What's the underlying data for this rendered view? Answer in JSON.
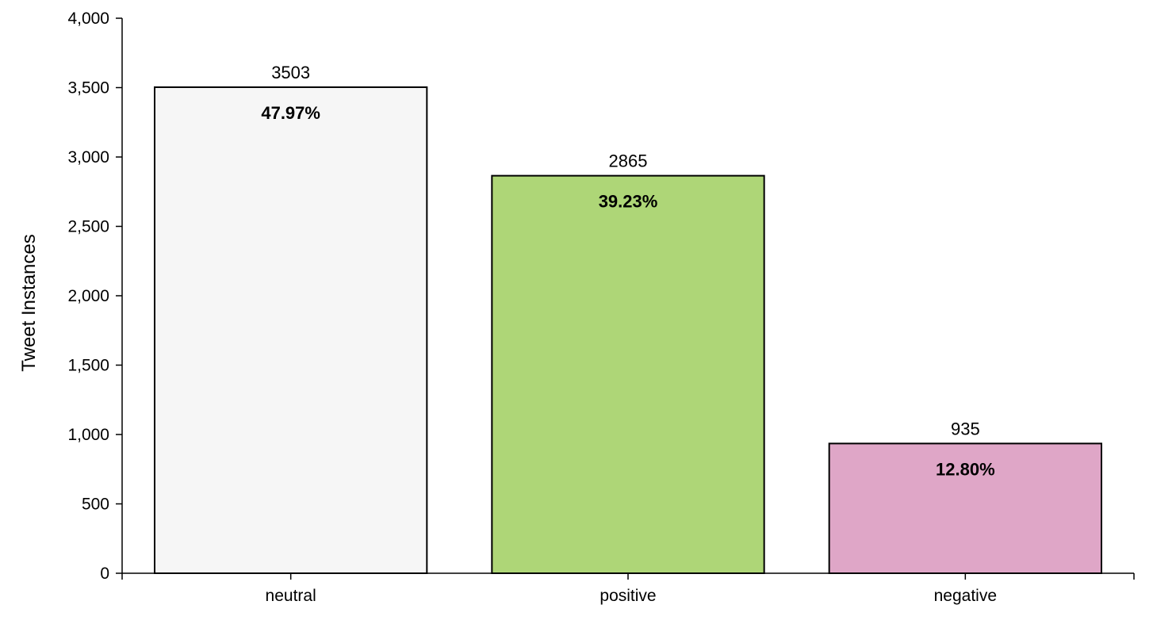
{
  "chart_data": {
    "type": "bar",
    "title": "",
    "xlabel": "",
    "ylabel": "Tweet Instances",
    "ylim": [
      0,
      4000
    ],
    "yticks": [
      {
        "value": 0,
        "label": "0"
      },
      {
        "value": 500,
        "label": "500"
      },
      {
        "value": 1000,
        "label": "1,000"
      },
      {
        "value": 1500,
        "label": "1,500"
      },
      {
        "value": 2000,
        "label": "2,000"
      },
      {
        "value": 2500,
        "label": "2,500"
      },
      {
        "value": 3000,
        "label": "3,000"
      },
      {
        "value": 3500,
        "label": "3,500"
      },
      {
        "value": 4000,
        "label": "4,000"
      }
    ],
    "grid": false,
    "legend": "none",
    "categories": [
      "neutral",
      "positive",
      "negative"
    ],
    "values": [
      3503,
      2865,
      935
    ],
    "value_labels": [
      "3503",
      "2865",
      "935"
    ],
    "percent_labels": [
      "47.97%",
      "39.23%",
      "12.80%"
    ],
    "colors": [
      "#f6f6f6",
      "#aed677",
      "#dfa6c7"
    ],
    "bar_stroke": "#000000"
  }
}
